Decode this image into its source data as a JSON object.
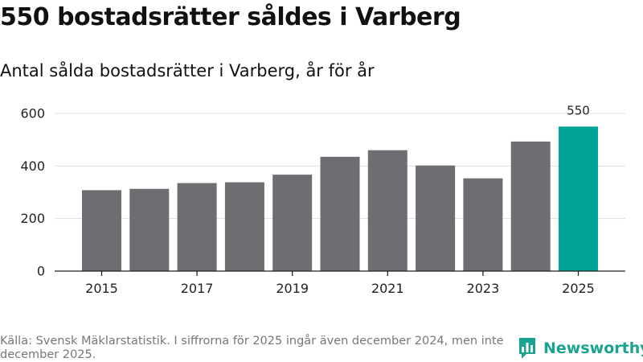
{
  "title": "550 bostadsrätter såldes i Varberg",
  "subtitle": "Antal sålda bostadsrätter i Varberg, år för år",
  "source": "Källa: Svensk Mäklarstatistik. I siffrorna för 2025 ingår även december 2024, men inte december 2025.",
  "brand": {
    "name": "Newsworthy",
    "icon": "bar-chart-icon"
  },
  "colors": {
    "bar": "#6e6d72",
    "highlight": "#00a398",
    "grid": "#dddddd",
    "axis": "#222222"
  },
  "chart_data": {
    "type": "bar",
    "title": "Antal sålda bostadsrätter i Varberg, år för år",
    "xlabel": "",
    "ylabel": "",
    "categories": [
      "2015",
      "2016",
      "2017",
      "2018",
      "2019",
      "2020",
      "2021",
      "2022",
      "2023",
      "2024",
      "2025"
    ],
    "values": [
      308,
      313,
      335,
      338,
      367,
      435,
      460,
      402,
      353,
      493,
      550
    ],
    "highlight_index": 10,
    "highlight_label": "550",
    "ylim": [
      0,
      600
    ],
    "yticks": [
      0,
      200,
      400,
      600
    ],
    "xticks": [
      "2015",
      "2017",
      "2019",
      "2021",
      "2023",
      "2025"
    ],
    "grid": true
  }
}
